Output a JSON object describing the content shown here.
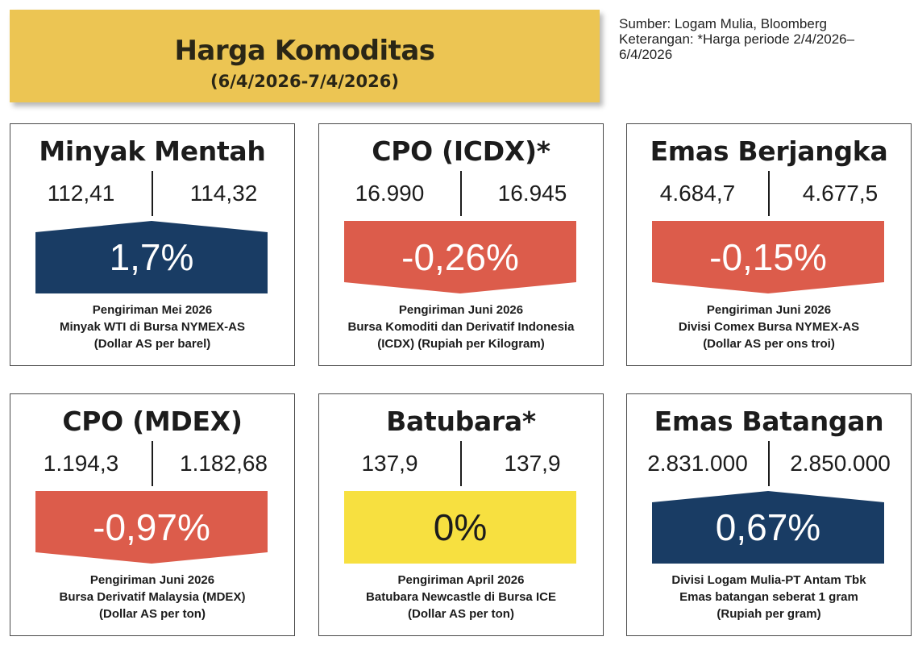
{
  "header": {
    "title": "Harga Komoditas",
    "date_range": "(6/4/2026-7/4/2026)"
  },
  "source": {
    "line1": "Sumber: Logam Mulia, Bloomberg",
    "line2": "Keterangan: *Harga periode 2/4/2026–\n6/4/2026"
  },
  "colors": {
    "up": "#193c64",
    "down": "#dc5c4b",
    "flat": "#f7e040",
    "title_bg": "#ecc553"
  },
  "cards": [
    {
      "name": "Minyak Mentah",
      "prev": "112,41",
      "curr": "114,32",
      "change": "1,7%",
      "direction": "up",
      "desc1": "Pengiriman Mei 2026",
      "desc2": "Minyak WTI di Bursa NYMEX-AS",
      "desc3": "(Dollar AS per barel)"
    },
    {
      "name": "CPO (ICDX)*",
      "prev": "16.990",
      "curr": "16.945",
      "change": "-0,26%",
      "direction": "down",
      "desc1": "Pengiriman Juni 2026",
      "desc2": "Bursa Komoditi dan Derivatif Indonesia",
      "desc3": "(ICDX) (Rupiah per Kilogram)"
    },
    {
      "name": "Emas Berjangka",
      "prev": "4.684,7",
      "curr": "4.677,5",
      "change": "-0,15%",
      "direction": "down",
      "desc1": "Pengiriman Juni 2026",
      "desc2": "Divisi Comex Bursa NYMEX-AS",
      "desc3": "(Dollar AS per ons troi)"
    },
    {
      "name": "CPO (MDEX)",
      "prev": "1.194,3",
      "curr": "1.182,68",
      "change": "-0,97%",
      "direction": "down",
      "desc1": "Pengiriman Juni 2026",
      "desc2": "Bursa Derivatif Malaysia (MDEX)",
      "desc3": "(Dollar AS per ton)"
    },
    {
      "name": "Batubara*",
      "prev": "137,9",
      "curr": "137,9",
      "change": "0%",
      "direction": "flat",
      "desc1": "Pengiriman April 2026",
      "desc2": "Batubara Newcastle di Bursa ICE",
      "desc3": "(Dollar AS per ton)"
    },
    {
      "name": "Emas Batangan",
      "prev": "2.831.000",
      "curr": "2.850.000",
      "change": "0,67%",
      "direction": "up",
      "desc1": "Divisi Logam Mulia-PT Antam Tbk",
      "desc2": "Emas batangan seberat 1 gram",
      "desc3": "(Rupiah per gram)"
    }
  ]
}
